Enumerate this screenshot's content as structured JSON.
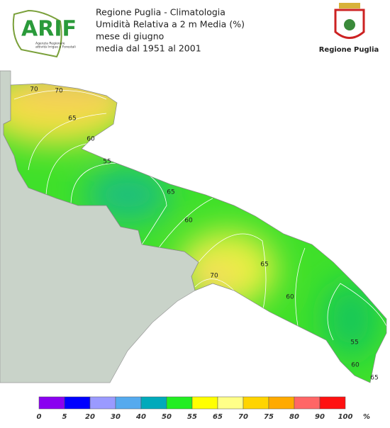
{
  "header": {
    "lines": [
      "Regione Puglia - Climatologia",
      "Umidità Relativa a 2 m Media (%)",
      "mese di giugno",
      "media dal 1951 al 2001"
    ],
    "logo_left": {
      "title": "ARIF",
      "subtitle": [
        "Agenzia Regionale",
        "attività Irrigue e Forestali"
      ]
    },
    "logo_right": {
      "title": "Regione Puglia"
    }
  },
  "map": {
    "contour_labels": [
      "70",
      "70",
      "65",
      "60",
      "55",
      "65",
      "60",
      "70",
      "65",
      "60",
      "55",
      "60",
      "65"
    ]
  },
  "legend": {
    "ticks": [
      "0",
      "5",
      "20",
      "30",
      "40",
      "50",
      "55",
      "65",
      "70",
      "75",
      "80",
      "90",
      "100"
    ],
    "unit": "%",
    "colors": [
      "#8a00f0",
      "#0000ff",
      "#9a9aff",
      "#55aaee",
      "#00aabb",
      "#22ee22",
      "#ffff00",
      "#ffff88",
      "#ffd400",
      "#ffaa00",
      "#ff6666",
      "#ff1111"
    ]
  }
}
